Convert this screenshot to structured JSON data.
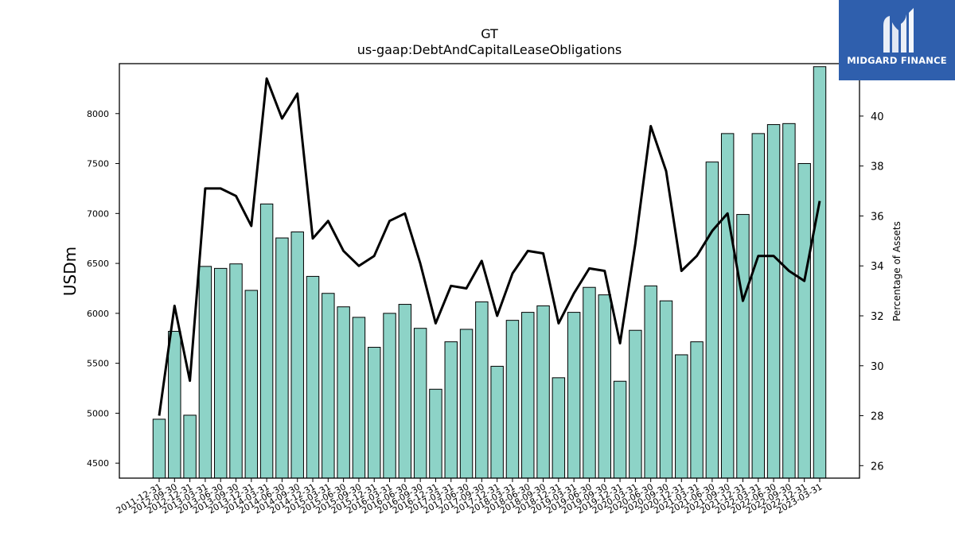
{
  "brand": {
    "name": "MIDGARD FINANCE",
    "color": "#2f5fad"
  },
  "chart_data": {
    "type": "bar",
    "title": "GT",
    "subtitle": "us-gaap:DebtAndCapitalLeaseObligations",
    "ylabel": "USDm",
    "ylabel_right": "Percentage of Assets",
    "ylim": [
      4350,
      8500
    ],
    "ylim_right": [
      25.5,
      42.1
    ],
    "yticks": [
      4500,
      5000,
      5500,
      6000,
      6500,
      7000,
      7500,
      8000
    ],
    "yticks_right": [
      26,
      28,
      30,
      32,
      34,
      36,
      38,
      40
    ],
    "bar_color": "#8dd3c7",
    "line_color": "#000000",
    "categories": [
      "2011-12-31",
      "2012-09-30",
      "2012-12-31",
      "2013-03-31",
      "2013-06-30",
      "2013-09-30",
      "2013-12-31",
      "2014-03-31",
      "2014-06-30",
      "2014-09-30",
      "2014-12-31",
      "2015-03-31",
      "2015-06-30",
      "2015-09-30",
      "2015-12-31",
      "2016-03-31",
      "2016-06-30",
      "2016-09-30",
      "2016-12-31",
      "2017-03-31",
      "2017-06-30",
      "2017-09-30",
      "2017-12-31",
      "2018-03-31",
      "2018-06-30",
      "2018-09-30",
      "2018-12-31",
      "2019-03-31",
      "2019-06-30",
      "2019-09-30",
      "2019-12-31",
      "2020-03-31",
      "2020-06-30",
      "2020-09-30",
      "2020-12-31",
      "2021-03-31",
      "2021-06-30",
      "2021-09-30",
      "2021-12-31",
      "2022-03-31",
      "2022-06-30",
      "2022-09-30",
      "2022-12-31",
      "2023-03-31"
    ],
    "series": [
      {
        "type": "bar",
        "axis": "left",
        "values": [
          4940,
          5820,
          4980,
          6470,
          6450,
          6495,
          6230,
          7095,
          6755,
          6815,
          6370,
          6200,
          6065,
          5960,
          5660,
          6000,
          6090,
          5850,
          5240,
          5715,
          5840,
          6115,
          5470,
          5930,
          6010,
          6075,
          5355,
          6010,
          6260,
          6185,
          5320,
          5830,
          6275,
          6125,
          5585,
          5715,
          7515,
          7800,
          6990,
          7800,
          7890,
          7900,
          7500,
          8470
        ]
      },
      {
        "type": "line",
        "axis": "right",
        "values": [
          28.0,
          32.4,
          29.4,
          37.1,
          37.1,
          36.8,
          35.6,
          41.5,
          39.9,
          40.9,
          35.1,
          35.8,
          34.6,
          34.0,
          34.4,
          35.8,
          36.1,
          34.1,
          31.7,
          33.2,
          33.1,
          34.2,
          32.0,
          33.7,
          34.6,
          34.5,
          31.7,
          32.9,
          33.9,
          33.8,
          30.9,
          34.9,
          39.6,
          37.8,
          33.8,
          34.4,
          35.4,
          36.1,
          32.6,
          34.4,
          34.4,
          33.8,
          33.4,
          36.6
        ]
      }
    ],
    "grid": false,
    "legend": "none"
  }
}
